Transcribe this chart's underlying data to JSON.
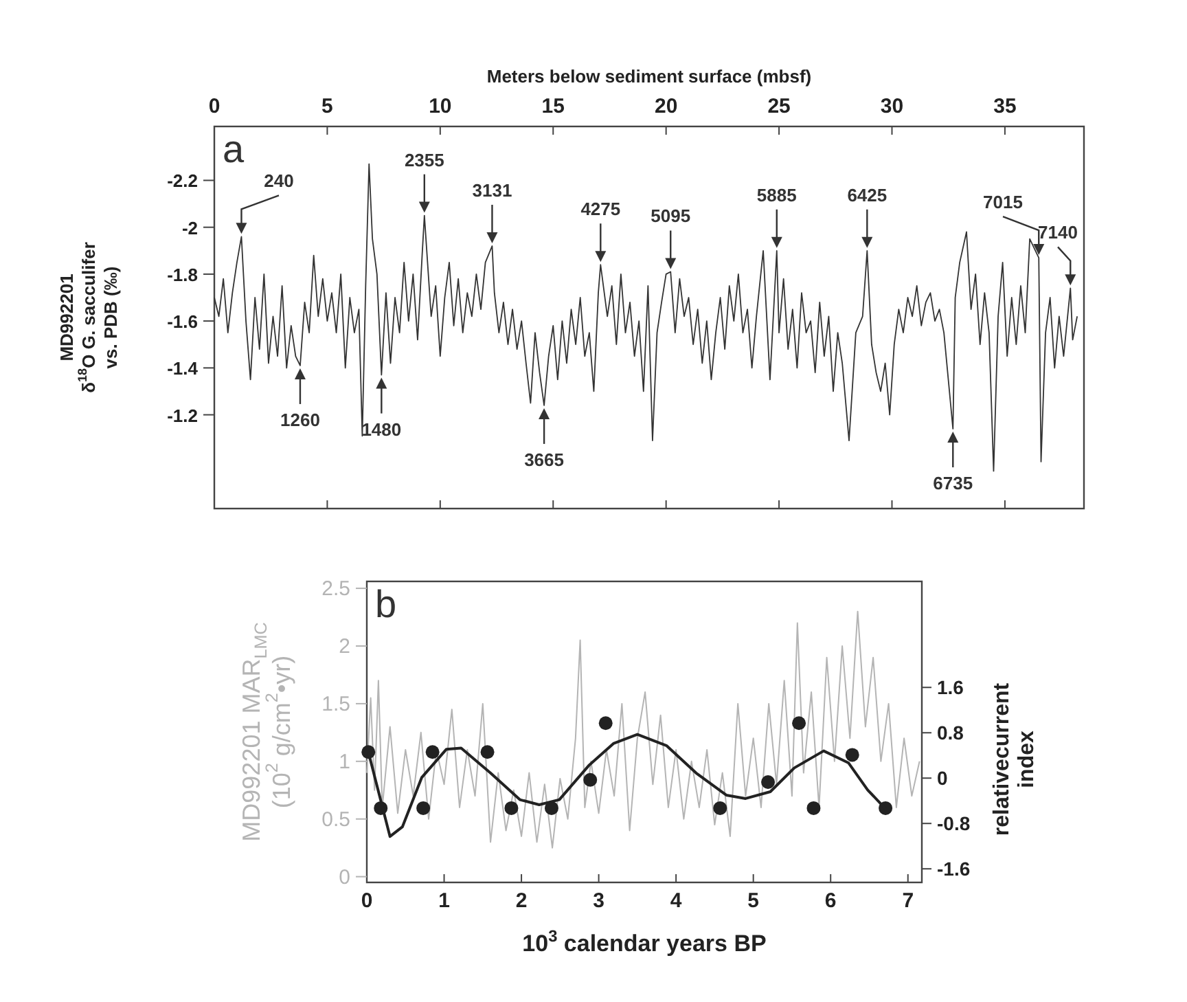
{
  "chart_data": [
    {
      "type": "line",
      "xlabel": "Meters below sediment surface (mbsf)",
      "ylabel": "MD992201\nδ$^{18}$O G. sacculifer\nvs. PDB (‰)",
      "xlim": [
        0,
        38.5
      ],
      "xticks": [
        0,
        5,
        10,
        15,
        20,
        25,
        30,
        35
      ],
      "ylim": [
        -0.8,
        -2.43
      ],
      "yticks": [
        -2.2,
        -2,
        -1.8,
        -1.6,
        -1.4,
        -1.2
      ],
      "grid": false,
      "series": [
        {
          "color": "#333333",
          "x": [
            0,
            0.2,
            0.4,
            0.6,
            0.8,
            1.0,
            1.2,
            1.4,
            1.6,
            1.8,
            2.0,
            2.2,
            2.4,
            2.6,
            2.8,
            3.0,
            3.2,
            3.4,
            3.6,
            3.8,
            4.0,
            4.2,
            4.4,
            4.6,
            4.8,
            5.0,
            5.2,
            5.4,
            5.6,
            5.8,
            6.0,
            6.2,
            6.4,
            6.55,
            6.7,
            6.85,
            7.0,
            7.2,
            7.4,
            7.6,
            7.8,
            8.0,
            8.2,
            8.4,
            8.6,
            8.8,
            9.0,
            9.2,
            9.3,
            9.6,
            9.8,
            10.0,
            10.2,
            10.4,
            10.6,
            10.8,
            11.0,
            11.2,
            11.4,
            11.6,
            11.8,
            12.0,
            12.3,
            12.4,
            12.6,
            12.8,
            13.0,
            13.2,
            13.4,
            13.6,
            13.8,
            14.0,
            14.2,
            14.4,
            14.6,
            14.8,
            15.0,
            15.2,
            15.4,
            15.6,
            15.8,
            16.0,
            16.2,
            16.4,
            16.6,
            16.8,
            17.0,
            17.1,
            17.4,
            17.6,
            17.8,
            18.0,
            18.2,
            18.4,
            18.6,
            18.8,
            19.0,
            19.2,
            19.4,
            19.6,
            19.8,
            20.0,
            20.2,
            20.4,
            20.6,
            20.8,
            21.0,
            21.2,
            21.4,
            21.6,
            21.8,
            22.0,
            22.2,
            22.4,
            22.6,
            22.8,
            23.0,
            23.2,
            23.4,
            23.6,
            23.8,
            24.0,
            24.3,
            24.6,
            24.9,
            25.0,
            25.2,
            25.4,
            25.6,
            25.8,
            26.0,
            26.2,
            26.4,
            26.6,
            26.8,
            27.0,
            27.2,
            27.4,
            27.6,
            27.8,
            28.1,
            28.4,
            28.7,
            28.9,
            29.1,
            29.3,
            29.5,
            29.7,
            29.9,
            30.1,
            30.3,
            30.5,
            30.7,
            30.9,
            31.1,
            31.3,
            31.5,
            31.7,
            31.9,
            32.1,
            32.3,
            32.7,
            32.8,
            33.0,
            33.3,
            33.5,
            33.7,
            33.9,
            34.1,
            34.3,
            34.5,
            34.7,
            34.9,
            35.1,
            35.3,
            35.5,
            35.7,
            35.9,
            36.1,
            36.5,
            36.6,
            36.8,
            37.0,
            37.2,
            37.4,
            37.6,
            37.9,
            38.0,
            38.2
          ],
          "values": [
            -1.7,
            -1.62,
            -1.78,
            -1.55,
            -1.72,
            -1.85,
            -1.96,
            -1.6,
            -1.35,
            -1.7,
            -1.48,
            -1.8,
            -1.42,
            -1.62,
            -1.45,
            -1.75,
            -1.4,
            -1.58,
            -1.45,
            -1.41,
            -1.68,
            -1.55,
            -1.88,
            -1.62,
            -1.78,
            -1.6,
            -1.72,
            -1.55,
            -1.8,
            -1.4,
            -1.7,
            -1.55,
            -1.65,
            -1.11,
            -1.75,
            -2.27,
            -1.95,
            -1.8,
            -1.37,
            -1.72,
            -1.42,
            -1.7,
            -1.55,
            -1.85,
            -1.6,
            -1.8,
            -1.52,
            -1.88,
            -2.05,
            -1.62,
            -1.75,
            -1.45,
            -1.7,
            -1.85,
            -1.58,
            -1.78,
            -1.55,
            -1.72,
            -1.62,
            -1.8,
            -1.65,
            -1.85,
            -1.92,
            -1.72,
            -1.55,
            -1.68,
            -1.5,
            -1.65,
            -1.48,
            -1.6,
            -1.42,
            -1.25,
            -1.55,
            -1.38,
            -1.24,
            -1.45,
            -1.58,
            -1.35,
            -1.6,
            -1.42,
            -1.65,
            -1.5,
            -1.7,
            -1.45,
            -1.55,
            -1.3,
            -1.72,
            -1.84,
            -1.62,
            -1.75,
            -1.5,
            -1.8,
            -1.55,
            -1.68,
            -1.45,
            -1.6,
            -1.3,
            -1.75,
            -1.09,
            -1.55,
            -1.68,
            -1.8,
            -1.81,
            -1.55,
            -1.78,
            -1.62,
            -1.7,
            -1.5,
            -1.65,
            -1.42,
            -1.6,
            -1.35,
            -1.55,
            -1.7,
            -1.48,
            -1.75,
            -1.6,
            -1.8,
            -1.55,
            -1.65,
            -1.4,
            -1.62,
            -1.9,
            -1.35,
            -1.9,
            -1.55,
            -1.78,
            -1.48,
            -1.65,
            -1.4,
            -1.72,
            -1.55,
            -1.6,
            -1.38,
            -1.68,
            -1.45,
            -1.62,
            -1.3,
            -1.55,
            -1.42,
            -1.09,
            -1.55,
            -1.62,
            -1.9,
            -1.5,
            -1.38,
            -1.3,
            -1.42,
            -1.2,
            -1.5,
            -1.65,
            -1.55,
            -1.7,
            -1.62,
            -1.75,
            -1.58,
            -1.68,
            -1.72,
            -1.6,
            -1.65,
            -1.55,
            -1.14,
            -1.7,
            -1.85,
            -1.98,
            -1.65,
            -1.8,
            -1.5,
            -1.72,
            -1.55,
            -0.96,
            -1.62,
            -1.85,
            -1.45,
            -1.7,
            -1.5,
            -1.75,
            -1.55,
            -1.95,
            -1.87,
            -1.0,
            -1.55,
            -1.7,
            -1.4,
            -1.62,
            -1.45,
            -1.74,
            -1.52,
            -1.62
          ]
        }
      ],
      "annotations": [
        "a",
        {
          "text": "240",
          "x": 1.2,
          "y": -1.96
        },
        {
          "text": "1260",
          "x": 3.8,
          "y": -1.41
        },
        {
          "text": "1480",
          "x": 7.4,
          "y": -1.37
        },
        {
          "text": "2355",
          "x": 9.3,
          "y": -2.05
        },
        {
          "text": "3131",
          "x": 12.3,
          "y": -1.92
        },
        {
          "text": "3665",
          "x": 14.6,
          "y": -1.24
        },
        {
          "text": "4275",
          "x": 17.1,
          "y": -1.84
        },
        {
          "text": "5095",
          "x": 20.2,
          "y": -1.81
        },
        {
          "text": "5885",
          "x": 24.9,
          "y": -1.9
        },
        {
          "text": "6425",
          "x": 28.9,
          "y": -1.9
        },
        {
          "text": "6735",
          "x": 32.7,
          "y": -1.14
        },
        {
          "text": "7015",
          "x": 36.5,
          "y": -1.87
        },
        {
          "text": "7140",
          "x": 37.9,
          "y": -1.74
        }
      ]
    },
    {
      "type": "line",
      "xlabel": "10$^{3}$ calendar years BP",
      "ylabel": "MD992201 MAR$_{LMC}$\n(10$^{2}$ g/cm$^{2}$•yr)",
      "y2label": "relativecurrent\nindex",
      "xlim": [
        0,
        7.18
      ],
      "xticks": [
        0,
        1,
        2,
        3,
        4,
        5,
        6,
        7
      ],
      "ylim": [
        -0.05,
        2.56
      ],
      "yticks": [
        0,
        0.5,
        1,
        1.5,
        2,
        2.5
      ],
      "y2lim": [
        -1.84,
        3.47
      ],
      "y2ticks": [
        -1.6,
        -0.8,
        0,
        0.8,
        1.6
      ],
      "grid": false,
      "series": [
        {
          "color": "#b4b4b4",
          "x": [
            0,
            0.05,
            0.1,
            0.15,
            0.2,
            0.3,
            0.4,
            0.5,
            0.6,
            0.7,
            0.8,
            0.9,
            1.0,
            1.1,
            1.2,
            1.3,
            1.4,
            1.5,
            1.6,
            1.7,
            1.8,
            1.9,
            2.0,
            2.1,
            2.2,
            2.3,
            2.4,
            2.5,
            2.6,
            2.7,
            2.76,
            2.82,
            2.9,
            3.0,
            3.1,
            3.2,
            3.3,
            3.4,
            3.5,
            3.6,
            3.7,
            3.8,
            3.9,
            4.0,
            4.1,
            4.2,
            4.3,
            4.4,
            4.5,
            4.6,
            4.7,
            4.8,
            4.9,
            5.0,
            5.1,
            5.2,
            5.3,
            5.4,
            5.5,
            5.57,
            5.65,
            5.75,
            5.85,
            5.95,
            6.05,
            6.15,
            6.25,
            6.35,
            6.45,
            6.55,
            6.65,
            6.75,
            6.85,
            6.95,
            7.05,
            7.15
          ],
          "values": [
            0.9,
            1.55,
            0.75,
            1.7,
            0.6,
            1.3,
            0.55,
            1.1,
            0.7,
            1.25,
            0.5,
            1.1,
            0.8,
            1.45,
            0.6,
            1.1,
            0.7,
            1.5,
            0.3,
            0.9,
            0.4,
            0.75,
            0.35,
            0.9,
            0.3,
            0.8,
            0.25,
            0.85,
            0.5,
            1.2,
            2.05,
            0.6,
            1.0,
            0.55,
            1.1,
            0.7,
            1.5,
            0.4,
            1.2,
            1.6,
            0.8,
            1.4,
            0.6,
            1.1,
            0.5,
            1.0,
            0.6,
            1.1,
            0.45,
            0.9,
            0.35,
            1.5,
            0.7,
            1.2,
            0.6,
            1.5,
            0.8,
            1.7,
            0.7,
            2.2,
            0.9,
            1.6,
            0.6,
            1.9,
            1.0,
            2.0,
            1.2,
            2.3,
            1.3,
            1.9,
            1.0,
            1.5,
            0.6,
            1.2,
            0.7,
            1.0
          ]
        },
        {
          "type": "scatter",
          "axis": "y2",
          "color": "#222222",
          "marker": "circle",
          "x": [
            0.02,
            0.18,
            0.73,
            0.85,
            1.56,
            1.87,
            2.39,
            2.89,
            3.09,
            4.57,
            5.19,
            5.59,
            5.78,
            6.28,
            6.71
          ],
          "values": [
            0.46,
            -0.53,
            -0.53,
            0.46,
            0.46,
            -0.53,
            -0.53,
            -0.03,
            0.97,
            -0.53,
            -0.07,
            0.97,
            -0.53,
            0.41,
            -0.53
          ]
        },
        {
          "type": "line",
          "axis": "y2",
          "color": "#222222",
          "x": [
            0.02,
            0.17,
            0.3,
            0.46,
            0.71,
            1.03,
            1.22,
            1.6,
            1.98,
            2.23,
            2.49,
            2.87,
            3.19,
            3.5,
            3.88,
            4.26,
            4.65,
            4.9,
            5.22,
            5.53,
            5.91,
            6.23,
            6.48,
            6.71
          ],
          "values": [
            0.46,
            -0.34,
            -1.03,
            -0.86,
            0.01,
            0.51,
            0.53,
            0.09,
            -0.38,
            -0.47,
            -0.38,
            0.22,
            0.61,
            0.77,
            0.57,
            0.09,
            -0.3,
            -0.36,
            -0.24,
            0.18,
            0.48,
            0.27,
            -0.21,
            -0.54
          ]
        }
      ],
      "annotations": [
        "b"
      ]
    }
  ]
}
